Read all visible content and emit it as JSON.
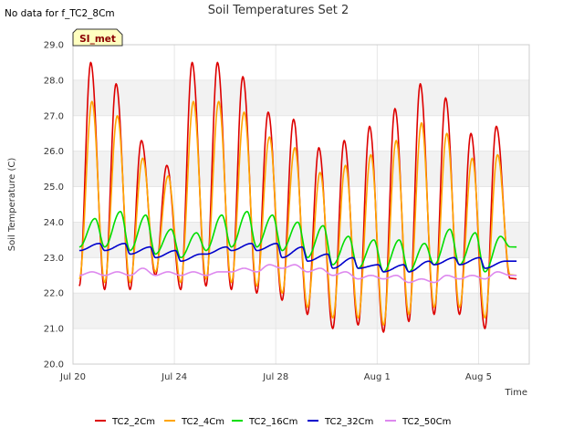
{
  "chart_data": {
    "type": "line",
    "title": "Soil Temperatures Set 2",
    "no_data_note": "No data for f_TC2_8Cm",
    "site_tag": "SI_met",
    "xlabel": "Time",
    "ylabel": "Soil Temperature (C)",
    "ylim": [
      20.0,
      29.0
    ],
    "y_ticks": [
      "20.0",
      "21.0",
      "22.0",
      "23.0",
      "24.0",
      "25.0",
      "26.0",
      "27.0",
      "28.0",
      "29.0"
    ],
    "xlim": [
      "2023-07-20",
      "2023-08-07"
    ],
    "x_ticks": [
      {
        "date": "2023-07-20",
        "label": "Jul 20"
      },
      {
        "date": "2023-07-24",
        "label": "Jul 24"
      },
      {
        "date": "2023-07-28",
        "label": "Jul 28"
      },
      {
        "date": "2023-08-01",
        "label": "Aug 1"
      },
      {
        "date": "2023-08-05",
        "label": "Aug 5"
      }
    ],
    "grid": true,
    "legend_position": "bottom",
    "x": [
      "2023-07-20 06:00",
      "2023-07-21 06:00",
      "2023-07-22 06:00",
      "2023-07-23 06:00",
      "2023-07-24 06:00",
      "2023-07-25 06:00",
      "2023-07-26 06:00",
      "2023-07-27 06:00",
      "2023-07-28 06:00",
      "2023-07-29 06:00",
      "2023-07-30 06:00",
      "2023-07-31 06:00",
      "2023-08-01 06:00",
      "2023-08-02 06:00",
      "2023-08-03 06:00",
      "2023-08-04 06:00",
      "2023-08-05 06:00",
      "2023-08-06 06:00",
      "2023-08-06 12:00"
    ],
    "series": [
      {
        "name": "TC2_2Cm",
        "color": "#dd0000",
        "daily_max": [
          28.5,
          27.9,
          26.3,
          25.6,
          28.5,
          28.5,
          28.1,
          27.1,
          26.9,
          26.1,
          26.3,
          26.7,
          27.2,
          27.9,
          27.5,
          26.5,
          26.7
        ],
        "daily_min": [
          22.2,
          22.1,
          22.1,
          22.5,
          22.1,
          22.2,
          22.1,
          22.0,
          21.8,
          21.4,
          21.0,
          21.1,
          20.9,
          21.2,
          21.4,
          21.4,
          21.0,
          22.4
        ]
      },
      {
        "name": "TC2_4Cm",
        "color": "#ffa500",
        "daily_max": [
          27.4,
          27.0,
          25.8,
          25.3,
          27.4,
          27.4,
          27.1,
          26.4,
          26.1,
          25.4,
          25.6,
          25.9,
          26.3,
          26.8,
          26.5,
          25.8,
          25.9
        ],
        "daily_min": [
          22.4,
          22.3,
          22.3,
          22.6,
          22.3,
          22.4,
          22.3,
          22.2,
          22.0,
          21.6,
          21.3,
          21.3,
          21.1,
          21.4,
          21.6,
          21.6,
          21.3,
          22.5
        ]
      },
      {
        "name": "TC2_16Cm",
        "color": "#00dd00",
        "daily_max": [
          24.1,
          24.3,
          24.2,
          23.8,
          23.7,
          24.2,
          24.3,
          24.2,
          24.0,
          23.9,
          23.6,
          23.5,
          23.5,
          23.4,
          23.8,
          23.7,
          23.6
        ],
        "daily_min": [
          23.3,
          23.3,
          23.2,
          23.1,
          23.0,
          23.2,
          23.3,
          23.3,
          23.2,
          23.0,
          22.8,
          22.7,
          22.6,
          22.6,
          22.8,
          22.8,
          22.6,
          23.3
        ]
      },
      {
        "name": "TC2_32Cm",
        "color": "#0000cc",
        "daily_max": [
          23.4,
          23.4,
          23.3,
          23.2,
          23.1,
          23.3,
          23.4,
          23.4,
          23.3,
          23.1,
          23.0,
          22.8,
          22.8,
          22.9,
          23.0,
          23.0,
          22.9
        ],
        "daily_min": [
          23.2,
          23.2,
          23.1,
          23.0,
          22.9,
          23.1,
          23.2,
          23.2,
          23.0,
          22.9,
          22.7,
          22.7,
          22.6,
          22.6,
          22.8,
          22.8,
          22.7,
          22.9
        ]
      },
      {
        "name": "TC2_50Cm",
        "color": "#dd88ee",
        "daily_max": [
          22.6,
          22.6,
          22.7,
          22.6,
          22.6,
          22.6,
          22.7,
          22.8,
          22.8,
          22.7,
          22.6,
          22.5,
          22.5,
          22.4,
          22.5,
          22.5,
          22.6
        ],
        "daily_min": [
          22.5,
          22.5,
          22.5,
          22.5,
          22.5,
          22.5,
          22.6,
          22.6,
          22.7,
          22.6,
          22.5,
          22.4,
          22.4,
          22.3,
          22.3,
          22.4,
          22.4,
          22.5
        ]
      }
    ]
  }
}
